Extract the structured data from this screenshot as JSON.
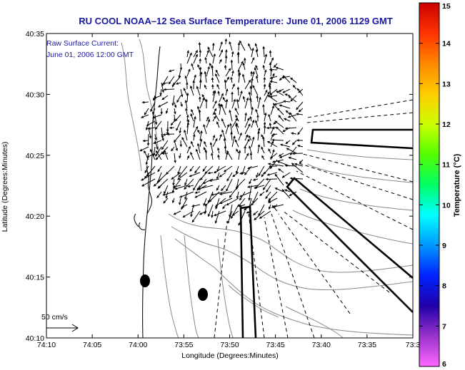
{
  "title": "RU COOL  NOAA–12  Sea Surface Temperature:  June 01, 2006 1129 GMT",
  "inset": {
    "line1": "Raw Surface Current:",
    "line2": "June 01, 2006 12:00 GMT"
  },
  "scale": {
    "label": "50 cm/s"
  },
  "axes": {
    "xlabel": "Longitude (Degrees:Minutes)",
    "ylabel": "Latitude (Degrees:Minutes)",
    "xticks": [
      "74:10",
      "74:05",
      "74:00",
      "73:55",
      "73:50",
      "73:45",
      "73:40",
      "73:35",
      "73:3"
    ],
    "yticks": [
      "40:35",
      "40:30",
      "40:25",
      "40:20",
      "40:15",
      "40:10"
    ]
  },
  "colorbar": {
    "label": "Temperature (°C)",
    "ticks": [
      "15",
      "14",
      "13",
      "12",
      "11",
      "10",
      "9",
      "8",
      "7",
      "6"
    ],
    "colors": [
      "#cc0000",
      "#ff3300",
      "#ff8800",
      "#ffcc00",
      "#ccff00",
      "#55ff00",
      "#00ff66",
      "#00ffff",
      "#0099ff",
      "#0022ff",
      "#2200aa",
      "#9933cc",
      "#ff66ff"
    ]
  }
}
